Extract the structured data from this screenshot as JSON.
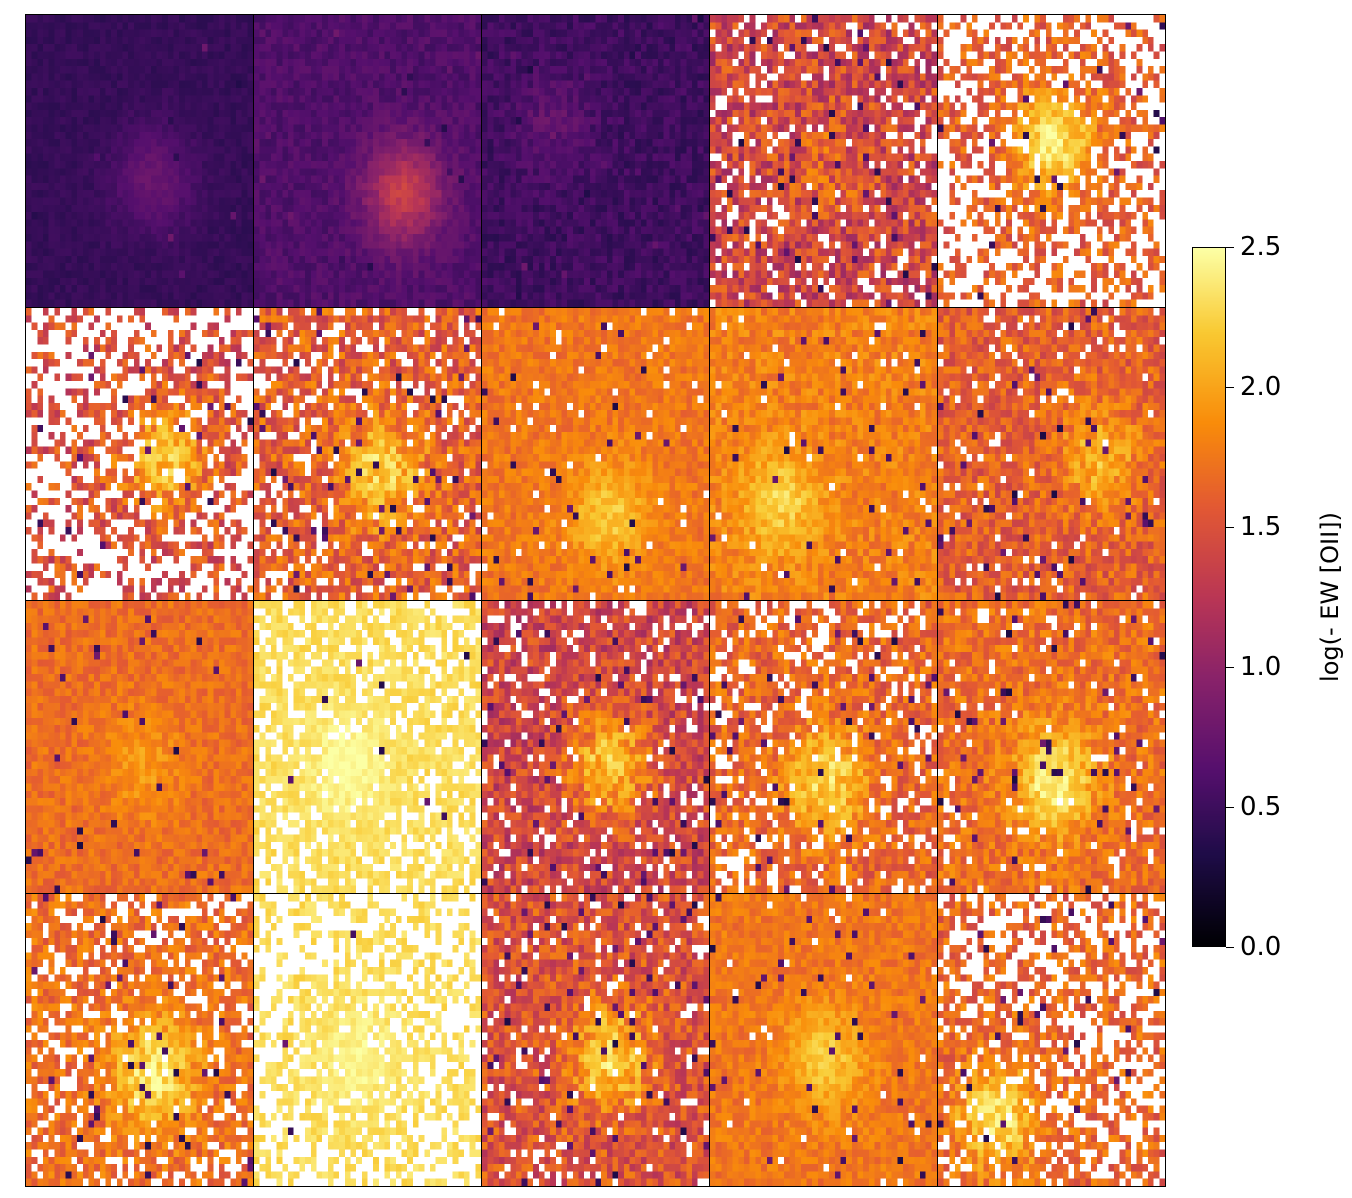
{
  "chart_data": {
    "type": "heatmap",
    "layout": {
      "rows": 4,
      "cols": 5
    },
    "colormap": "inferno",
    "colorbar": {
      "label": "log(- EW [OII])",
      "range": [
        0.0,
        2.5
      ],
      "ticks": [
        "0.0",
        "0.5",
        "1.0",
        "1.5",
        "2.0",
        "2.5"
      ]
    },
    "panels": [
      {
        "row": 0,
        "col": 0,
        "background": 0.45,
        "peak": 0.75,
        "blob_x": 0.55,
        "blob_y": 0.55,
        "noise": 0.06,
        "missing": 0.0
      },
      {
        "row": 0,
        "col": 1,
        "background": 0.6,
        "peak": 1.35,
        "blob_x": 0.65,
        "blob_y": 0.6,
        "noise": 0.1,
        "missing": 0.0
      },
      {
        "row": 0,
        "col": 2,
        "background": 0.5,
        "peak": 0.7,
        "blob_x": 0.3,
        "blob_y": 0.35,
        "noise": 0.12,
        "missing": 0.0
      },
      {
        "row": 0,
        "col": 3,
        "background": 1.4,
        "peak": 1.6,
        "blob_x": 0.5,
        "blob_y": 0.5,
        "noise": 0.35,
        "missing": 0.2
      },
      {
        "row": 0,
        "col": 4,
        "background": 1.6,
        "peak": 2.4,
        "blob_x": 0.5,
        "blob_y": 0.42,
        "noise": 0.25,
        "missing": 0.55
      },
      {
        "row": 1,
        "col": 0,
        "background": 1.5,
        "peak": 2.2,
        "blob_x": 0.6,
        "blob_y": 0.5,
        "noise": 0.3,
        "missing": 0.6
      },
      {
        "row": 1,
        "col": 1,
        "background": 1.6,
        "peak": 2.25,
        "blob_x": 0.55,
        "blob_y": 0.55,
        "noise": 0.3,
        "missing": 0.2
      },
      {
        "row": 1,
        "col": 2,
        "background": 1.75,
        "peak": 2.2,
        "blob_x": 0.55,
        "blob_y": 0.7,
        "noise": 0.15,
        "missing": 0.05
      },
      {
        "row": 1,
        "col": 3,
        "background": 1.8,
        "peak": 2.25,
        "blob_x": 0.3,
        "blob_y": 0.65,
        "noise": 0.18,
        "missing": 0.03
      },
      {
        "row": 1,
        "col": 4,
        "background": 1.6,
        "peak": 2.1,
        "blob_x": 0.7,
        "blob_y": 0.5,
        "noise": 0.25,
        "missing": 0.08
      },
      {
        "row": 2,
        "col": 0,
        "background": 1.7,
        "peak": 1.95,
        "blob_x": 0.5,
        "blob_y": 0.55,
        "noise": 0.15,
        "missing": 0.0
      },
      {
        "row": 2,
        "col": 1,
        "background": 2.3,
        "peak": 2.5,
        "blob_x": 0.4,
        "blob_y": 0.55,
        "noise": 0.08,
        "missing": 0.35
      },
      {
        "row": 2,
        "col": 2,
        "background": 1.4,
        "peak": 2.2,
        "blob_x": 0.55,
        "blob_y": 0.55,
        "noise": 0.3,
        "missing": 0.15
      },
      {
        "row": 2,
        "col": 3,
        "background": 1.65,
        "peak": 2.3,
        "blob_x": 0.5,
        "blob_y": 0.6,
        "noise": 0.25,
        "missing": 0.25
      },
      {
        "row": 2,
        "col": 4,
        "background": 1.7,
        "peak": 2.45,
        "blob_x": 0.5,
        "blob_y": 0.6,
        "noise": 0.22,
        "missing": 0.1
      },
      {
        "row": 3,
        "col": 0,
        "background": 1.7,
        "peak": 2.4,
        "blob_x": 0.55,
        "blob_y": 0.6,
        "noise": 0.22,
        "missing": 0.3
      },
      {
        "row": 3,
        "col": 1,
        "background": 2.3,
        "peak": 2.45,
        "blob_x": 0.45,
        "blob_y": 0.55,
        "noise": 0.08,
        "missing": 0.6
      },
      {
        "row": 3,
        "col": 2,
        "background": 1.5,
        "peak": 2.3,
        "blob_x": 0.55,
        "blob_y": 0.55,
        "noise": 0.3,
        "missing": 0.12
      },
      {
        "row": 3,
        "col": 3,
        "background": 1.75,
        "peak": 2.2,
        "blob_x": 0.5,
        "blob_y": 0.55,
        "noise": 0.15,
        "missing": 0.02
      },
      {
        "row": 3,
        "col": 4,
        "background": 1.65,
        "peak": 2.35,
        "blob_x": 0.25,
        "blob_y": 0.75,
        "noise": 0.25,
        "missing": 0.45
      }
    ]
  }
}
